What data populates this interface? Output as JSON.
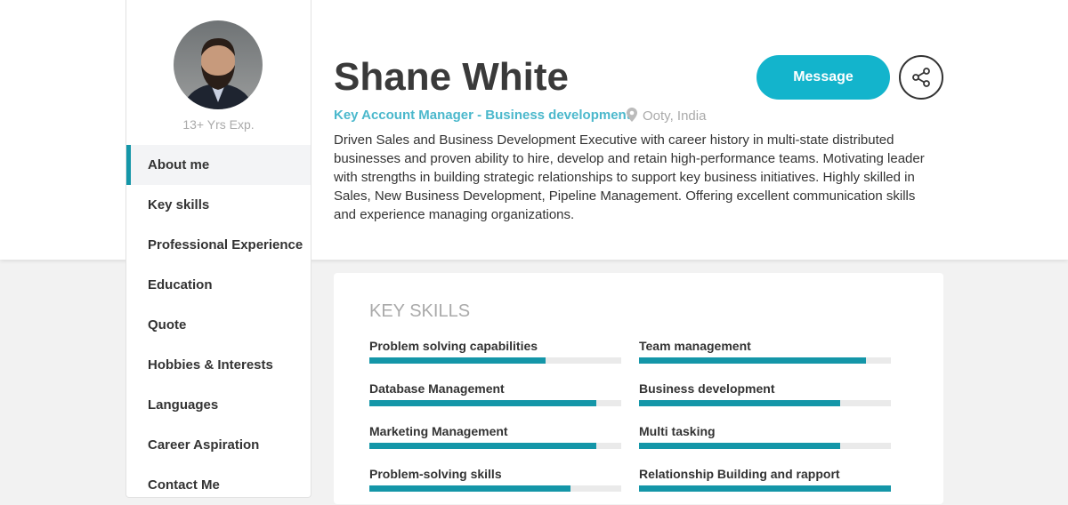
{
  "profile": {
    "exp": "13+ Yrs Exp.",
    "name": "Shane White",
    "role": "Key Account Manager - Business development",
    "location": "Ooty, India",
    "bio": "Driven Sales and Business Development Executive with career history in multi-state distributed businesses and proven ability to hire, develop and retain high-performance teams. Motivating leader with strengths in building strategic relationships to support key business initiatives. Highly skilled in Sales, New Business Development, Pipeline Management. Offering excellent communication skills and experience managing organizations."
  },
  "actions": {
    "message": "Message",
    "share_icon": "share-icon"
  },
  "nav": [
    {
      "label": "About me",
      "active": true
    },
    {
      "label": "Key skills"
    },
    {
      "label": "Professional Experience"
    },
    {
      "label": "Education"
    },
    {
      "label": "Quote"
    },
    {
      "label": "Hobbies & Interests"
    },
    {
      "label": "Languages"
    },
    {
      "label": "Career Aspiration"
    },
    {
      "label": "Contact Me"
    }
  ],
  "skills": {
    "title": "KEY SKILLS",
    "items": [
      {
        "label": "Problem solving capabilities",
        "percent": 70
      },
      {
        "label": "Team management",
        "percent": 90
      },
      {
        "label": "Database Management",
        "percent": 90
      },
      {
        "label": "Business development",
        "percent": 80
      },
      {
        "label": "Marketing Management",
        "percent": 90
      },
      {
        "label": "Multi tasking",
        "percent": 80
      },
      {
        "label": "Problem-solving skills",
        "percent": 80
      },
      {
        "label": "Relationship Building and rapport",
        "percent": 100
      }
    ]
  },
  "colors": {
    "accent": "#1496a8",
    "button": "#13b4cc",
    "role": "#4bb8cc"
  }
}
